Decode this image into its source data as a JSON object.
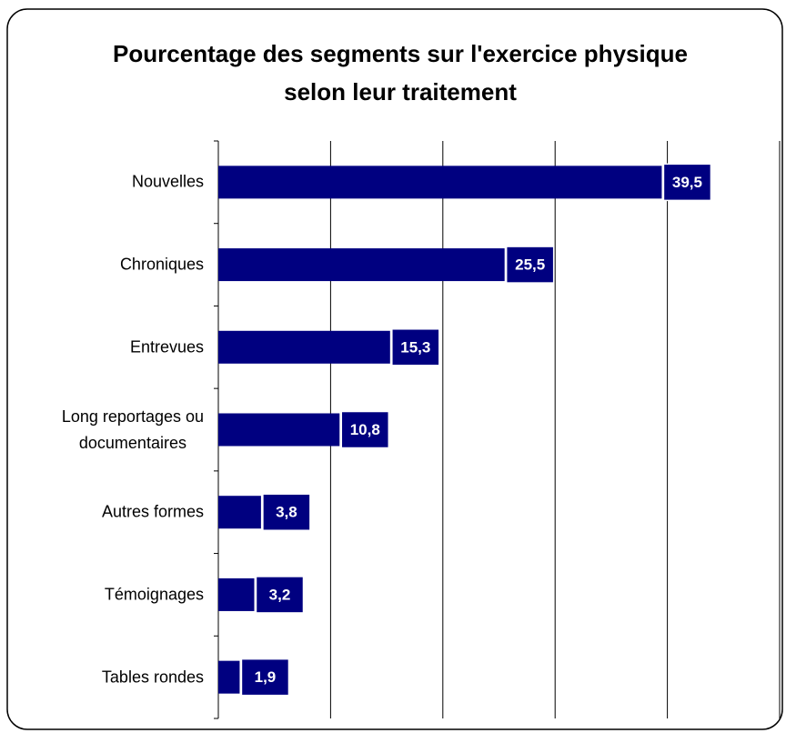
{
  "chart_data": {
    "type": "bar",
    "orientation": "horizontal",
    "title": "Pourcentage des segments sur l'exercice physique selon leur traitement",
    "categories": [
      "Nouvelles",
      "Chroniques",
      "Entrevues",
      "Long reportages ou\ndocumentaires",
      "Autres formes",
      "Témoignages",
      "Tables rondes"
    ],
    "values": [
      39.5,
      25.5,
      15.3,
      10.8,
      3.8,
      3.2,
      1.9
    ],
    "value_labels": [
      "39,5",
      "25,5",
      "15,3",
      "10,8",
      "3,8",
      "3,2",
      "1,9"
    ],
    "color": "#000080",
    "xlim": [
      0,
      50
    ],
    "xticks": [
      0,
      10,
      20,
      30,
      40,
      50
    ],
    "grid": true
  }
}
